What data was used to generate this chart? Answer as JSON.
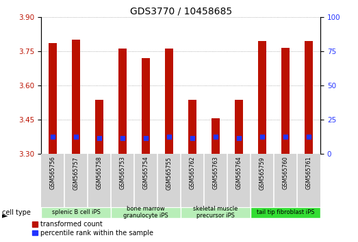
{
  "title": "GDS3770 / 10458685",
  "samples": [
    "GSM565756",
    "GSM565757",
    "GSM565758",
    "GSM565753",
    "GSM565754",
    "GSM565755",
    "GSM565762",
    "GSM565763",
    "GSM565764",
    "GSM565759",
    "GSM565760",
    "GSM565761"
  ],
  "bar_bottom": 3.3,
  "transformed_counts": [
    3.785,
    3.8,
    3.535,
    3.76,
    3.72,
    3.76,
    3.535,
    3.455,
    3.535,
    3.795,
    3.765,
    3.795
  ],
  "percentile_values": [
    3.373,
    3.373,
    3.368,
    3.368,
    3.368,
    3.373,
    3.368,
    3.373,
    3.368,
    3.373,
    3.373,
    3.373
  ],
  "ylim": [
    3.3,
    3.9
  ],
  "yticks_left": [
    3.3,
    3.45,
    3.6,
    3.75,
    3.9
  ],
  "yticks_right": [
    0,
    25,
    50,
    75,
    100
  ],
  "bar_color": "#bb1100",
  "dot_color": "#2233ff",
  "cell_groups": [
    {
      "label": "splenic B cell iPS",
      "start": 0,
      "end": 3,
      "color": "#b8eeb8"
    },
    {
      "label": "bone marrow\ngranulocyte iPS",
      "start": 3,
      "end": 6,
      "color": "#b8eeb8"
    },
    {
      "label": "skeletal muscle\nprecursor iPS",
      "start": 6,
      "end": 9,
      "color": "#b8eeb8"
    },
    {
      "label": "tail tip fibroblast iPS",
      "start": 9,
      "end": 12,
      "color": "#33dd33"
    }
  ],
  "legend_labels": [
    "transformed count",
    "percentile rank within the sample"
  ],
  "cell_type_label": "cell type",
  "bar_width": 0.35,
  "dot_size": 18,
  "title_fontsize": 10,
  "tick_fontsize": 7.5
}
